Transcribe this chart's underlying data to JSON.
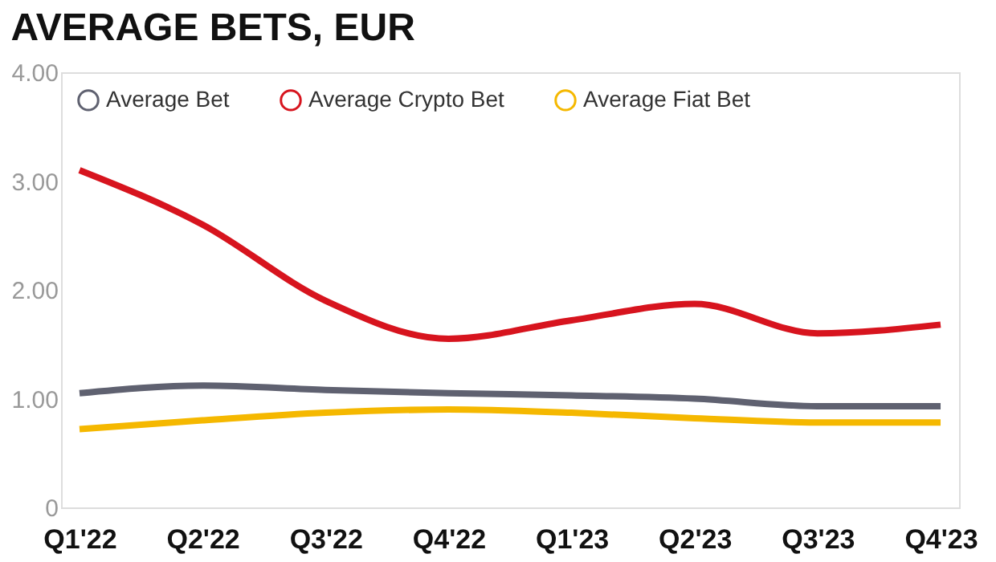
{
  "chart_data": {
    "type": "line",
    "title": "AVERAGE BETS, EUR",
    "categories": [
      "Q1'22",
      "Q2'22",
      "Q3'22",
      "Q4'22",
      "Q1'23",
      "Q2'23",
      "Q3'23",
      "Q4'23"
    ],
    "series": [
      {
        "name": "Average Bet",
        "color": "#5f6170",
        "values": [
          1.05,
          1.12,
          1.08,
          1.05,
          1.03,
          1.0,
          0.93,
          0.93
        ]
      },
      {
        "name": "Average Crypto Bet",
        "color": "#d7141e",
        "values": [
          3.1,
          2.6,
          1.9,
          1.55,
          1.72,
          1.87,
          1.6,
          1.68
        ]
      },
      {
        "name": "Average Fiat Bet",
        "color": "#f5b800",
        "values": [
          0.72,
          0.8,
          0.87,
          0.9,
          0.87,
          0.82,
          0.78,
          0.78
        ]
      }
    ],
    "ylim": [
      0,
      4
    ],
    "yticks": [
      {
        "value": 0,
        "label": "0"
      },
      {
        "value": 1,
        "label": "1.00"
      },
      {
        "value": 2,
        "label": "2.00"
      },
      {
        "value": 3,
        "label": "3.00"
      },
      {
        "value": 4,
        "label": "4.00"
      }
    ],
    "grid": false,
    "legend": "top left",
    "marker": "none",
    "line_style": "solid"
  }
}
